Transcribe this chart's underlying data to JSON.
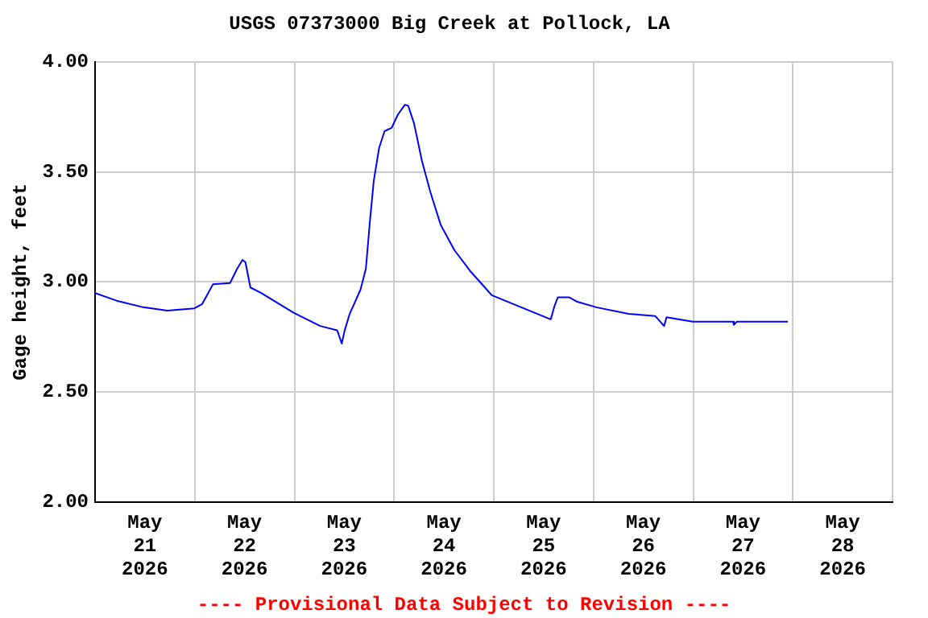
{
  "chart_data": {
    "type": "line",
    "title": "USGS 07373000 Big Creek at Pollock, LA",
    "ylabel": "Gage height, feet",
    "annotations": [
      "---- Provisional Data Subject to Revision ----"
    ],
    "x": [
      "2026-05-21T00:00",
      "2026-05-21T05:12",
      "2026-05-21T11:36",
      "2026-05-21T17:24",
      "2026-05-21T23:54",
      "2026-05-22T01:48",
      "2026-05-22T04:24",
      "2026-05-22T08:30",
      "2026-05-22T10:12",
      "2026-05-22T11:30",
      "2026-05-22T12:12",
      "2026-05-22T13:24",
      "2026-05-22T16:00",
      "2026-05-22T23:48",
      "2026-05-23T06:12",
      "2026-05-23T10:18",
      "2026-05-23T11:24",
      "2026-05-23T12:06",
      "2026-05-23T13:18",
      "2026-05-23T15:54",
      "2026-05-23T17:12",
      "2026-05-23T18:06",
      "2026-05-23T19:06",
      "2026-05-23T20:24",
      "2026-05-23T21:42",
      "2026-05-23T23:24",
      "2026-05-24T00:54",
      "2026-05-24T02:36",
      "2026-05-24T03:24",
      "2026-05-24T04:48",
      "2026-05-24T06:42",
      "2026-05-24T08:42",
      "2026-05-24T11:12",
      "2026-05-24T14:30",
      "2026-05-24T18:18",
      "2026-05-24T22:48",
      "2026-05-24T23:30",
      "2026-05-25T06:36",
      "2026-05-25T13:42",
      "2026-05-25T14:36",
      "2026-05-25T15:24",
      "2026-05-25T18:12",
      "2026-05-25T20:06",
      "2026-05-26T00:42",
      "2026-05-26T08:24",
      "2026-05-26T14:54",
      "2026-05-26T17:00",
      "2026-05-26T17:36",
      "2026-05-26T23:54",
      "2026-05-27T09:36",
      "2026-05-27T09:48",
      "2026-05-27T10:30",
      "2026-05-27T22:48"
    ],
    "series": [
      {
        "color": "#0000ff",
        "values": [
          2.95,
          2.915,
          2.885,
          2.87,
          2.88,
          2.9,
          2.99,
          2.995,
          3.06,
          3.1,
          3.09,
          2.975,
          2.95,
          2.86,
          2.8,
          2.78,
          2.72,
          2.78,
          2.855,
          2.965,
          3.06,
          3.26,
          3.46,
          3.61,
          3.685,
          3.7,
          3.76,
          3.805,
          3.8,
          3.72,
          3.55,
          3.41,
          3.26,
          3.145,
          3.05,
          2.955,
          2.94,
          2.885,
          2.83,
          2.89,
          2.93,
          2.93,
          2.91,
          2.885,
          2.855,
          2.845,
          2.8,
          2.84,
          2.82,
          2.82,
          2.805,
          2.82,
          2.82
        ]
      }
    ],
    "xlim": [
      "2026-05-21T00:00",
      "2026-05-29T00:00"
    ],
    "xticks": [
      {
        "value": "2026-05-21T00:00",
        "label": null
      },
      {
        "value": "2026-05-21T12:00",
        "label": "May\n21\n2026"
      },
      {
        "value": "2026-05-22T00:00",
        "label": null
      },
      {
        "value": "2026-05-22T12:00",
        "label": "May\n22\n2026"
      },
      {
        "value": "2026-05-23T00:00",
        "label": null
      },
      {
        "value": "2026-05-23T12:00",
        "label": "May\n23\n2026"
      },
      {
        "value": "2026-05-24T00:00",
        "label": null
      },
      {
        "value": "2026-05-24T12:00",
        "label": "May\n24\n2026"
      },
      {
        "value": "2026-05-25T00:00",
        "label": null
      },
      {
        "value": "2026-05-25T12:00",
        "label": "May\n25\n2026"
      },
      {
        "value": "2026-05-26T00:00",
        "label": null
      },
      {
        "value": "2026-05-26T12:00",
        "label": "May\n26\n2026"
      },
      {
        "value": "2026-05-27T00:00",
        "label": null
      },
      {
        "value": "2026-05-27T12:00",
        "label": "May\n27\n2026"
      },
      {
        "value": "2026-05-28T00:00",
        "label": null
      },
      {
        "value": "2026-05-28T12:00",
        "label": "May\n28\n2026"
      },
      {
        "value": "2026-05-29T00:00",
        "label": null
      }
    ],
    "ylim": [
      2,
      4
    ],
    "yticks": [
      {
        "value": 2,
        "label": "2.00"
      },
      {
        "value": 2.5,
        "label": "2.50"
      },
      {
        "value": 3,
        "label": "3.00"
      },
      {
        "value": 3.5,
        "label": "3.50"
      },
      {
        "value": 4,
        "label": "4.00"
      }
    ],
    "grid": true,
    "legend": false,
    "marker": "none",
    "line_style": "solid"
  }
}
